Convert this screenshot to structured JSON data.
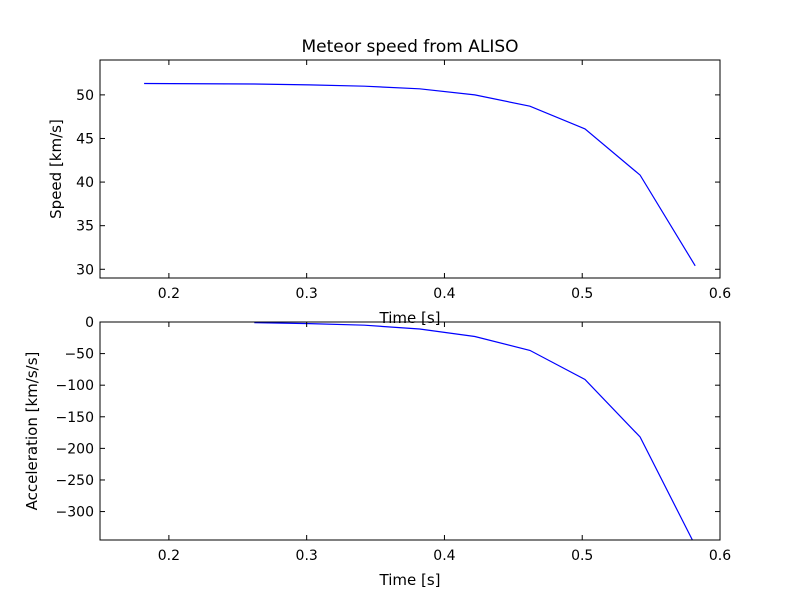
{
  "chart_data": [
    {
      "type": "line",
      "title": "Meteor speed from  ALISO",
      "xlabel": "Time [s]",
      "ylabel": "Speed [km/s]",
      "xlim": [
        0.15,
        0.6
      ],
      "ylim": [
        29,
        54
      ],
      "xticks": [
        0.2,
        0.3,
        0.4,
        0.5,
        0.6
      ],
      "xtick_labels": [
        "0.2",
        "0.3",
        "0.4",
        "0.5",
        "0.6"
      ],
      "yticks": [
        30,
        35,
        40,
        45,
        50
      ],
      "ytick_labels": [
        "30",
        "35",
        "40",
        "45",
        "50"
      ],
      "grid": false,
      "series": [
        {
          "color": "#0000ff",
          "x": [
            0.182,
            0.262,
            0.302,
            0.342,
            0.382,
            0.422,
            0.462,
            0.502,
            0.542,
            0.582
          ],
          "y": [
            51.3,
            51.25,
            51.15,
            51.0,
            50.7,
            50.0,
            48.7,
            46.1,
            40.8,
            30.4
          ]
        }
      ]
    },
    {
      "type": "line",
      "title": "",
      "xlabel": "Time [s]",
      "ylabel": "Acceleration [km/s/s]",
      "xlim": [
        0.15,
        0.6
      ],
      "ylim": [
        -345,
        0
      ],
      "xticks": [
        0.2,
        0.3,
        0.4,
        0.5,
        0.6
      ],
      "xtick_labels": [
        "0.2",
        "0.3",
        "0.4",
        "0.5",
        "0.6"
      ],
      "yticks": [
        0,
        -50,
        -100,
        -150,
        -200,
        -250,
        -300
      ],
      "ytick_labels": [
        "0",
        "−50",
        "−100",
        "−150",
        "−200",
        "−250",
        "−300"
      ],
      "grid": false,
      "series": [
        {
          "color": "#0000ff",
          "x": [
            0.262,
            0.302,
            0.342,
            0.382,
            0.422,
            0.462,
            0.502,
            0.542,
            0.58
          ],
          "y": [
            -1,
            -2.5,
            -5,
            -11,
            -23,
            -45,
            -91,
            -182,
            -345
          ]
        }
      ]
    }
  ]
}
